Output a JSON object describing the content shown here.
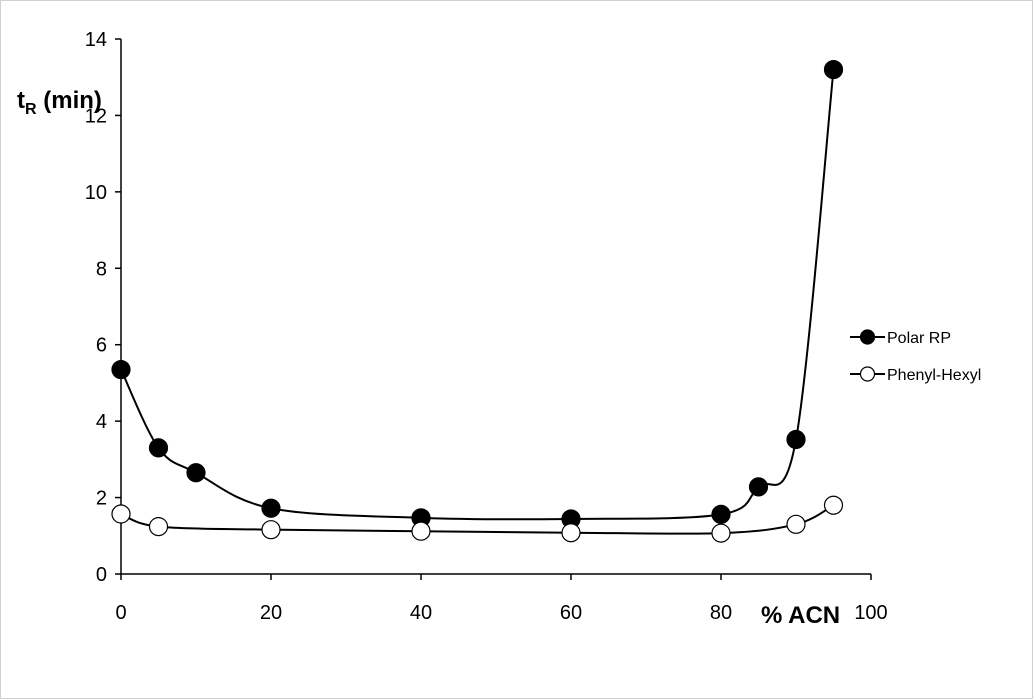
{
  "chart_data": {
    "type": "line",
    "title": "",
    "ylabel": {
      "main": "t",
      "subscript": "R",
      "rest": " (min)"
    },
    "xlabel": "% ACN",
    "xlim": [
      0,
      100
    ],
    "ylim": [
      0,
      14
    ],
    "x_ticks": [
      0,
      20,
      40,
      60,
      80,
      100
    ],
    "x_tick_labels": [
      "0",
      "20",
      "40",
      "60",
      "80",
      "100"
    ],
    "y_ticks": [
      0,
      2,
      4,
      6,
      8,
      10,
      12,
      14
    ],
    "y_tick_labels": [
      "0",
      "2",
      "4",
      "6",
      "8",
      "10",
      "12",
      "14"
    ],
    "grid": false,
    "legend_position": "right",
    "series": [
      {
        "name": "Polar RP",
        "marker": "filled-circle",
        "color": "#000000",
        "x": [
          0,
          5,
          10,
          20,
          40,
          60,
          80,
          85,
          90,
          95
        ],
        "y": [
          5.35,
          3.3,
          2.65,
          1.72,
          1.47,
          1.44,
          1.56,
          2.28,
          3.52,
          13.2
        ]
      },
      {
        "name": "Phenyl-Hexyl",
        "marker": "open-circle",
        "color": "#000000",
        "x": [
          0,
          5,
          20,
          40,
          60,
          80,
          90,
          95
        ],
        "y": [
          1.57,
          1.24,
          1.16,
          1.12,
          1.08,
          1.07,
          1.3,
          1.8
        ]
      }
    ]
  }
}
